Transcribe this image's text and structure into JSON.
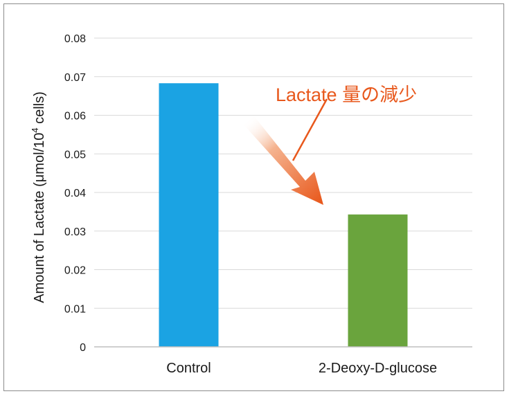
{
  "chart_data": {
    "type": "bar",
    "categories": [
      "Control",
      "2-Deoxy-D-glucose"
    ],
    "values": [
      0.0683,
      0.0343
    ],
    "bar_colors": [
      "#1ba3e3",
      "#6aa43d"
    ],
    "ylabel_main": "Amount of Lactate (μmol/10",
    "ylabel_sup": "4",
    "ylabel_end": " cells)",
    "ylim": [
      0,
      0.08
    ],
    "yticks": [
      "0",
      "0.01",
      "0.02",
      "0.03",
      "0.04",
      "0.05",
      "0.06",
      "0.07",
      "0.08"
    ],
    "grid": true,
    "annotation": {
      "text": "Lactate 量の減少",
      "color": "#e8581c"
    }
  }
}
